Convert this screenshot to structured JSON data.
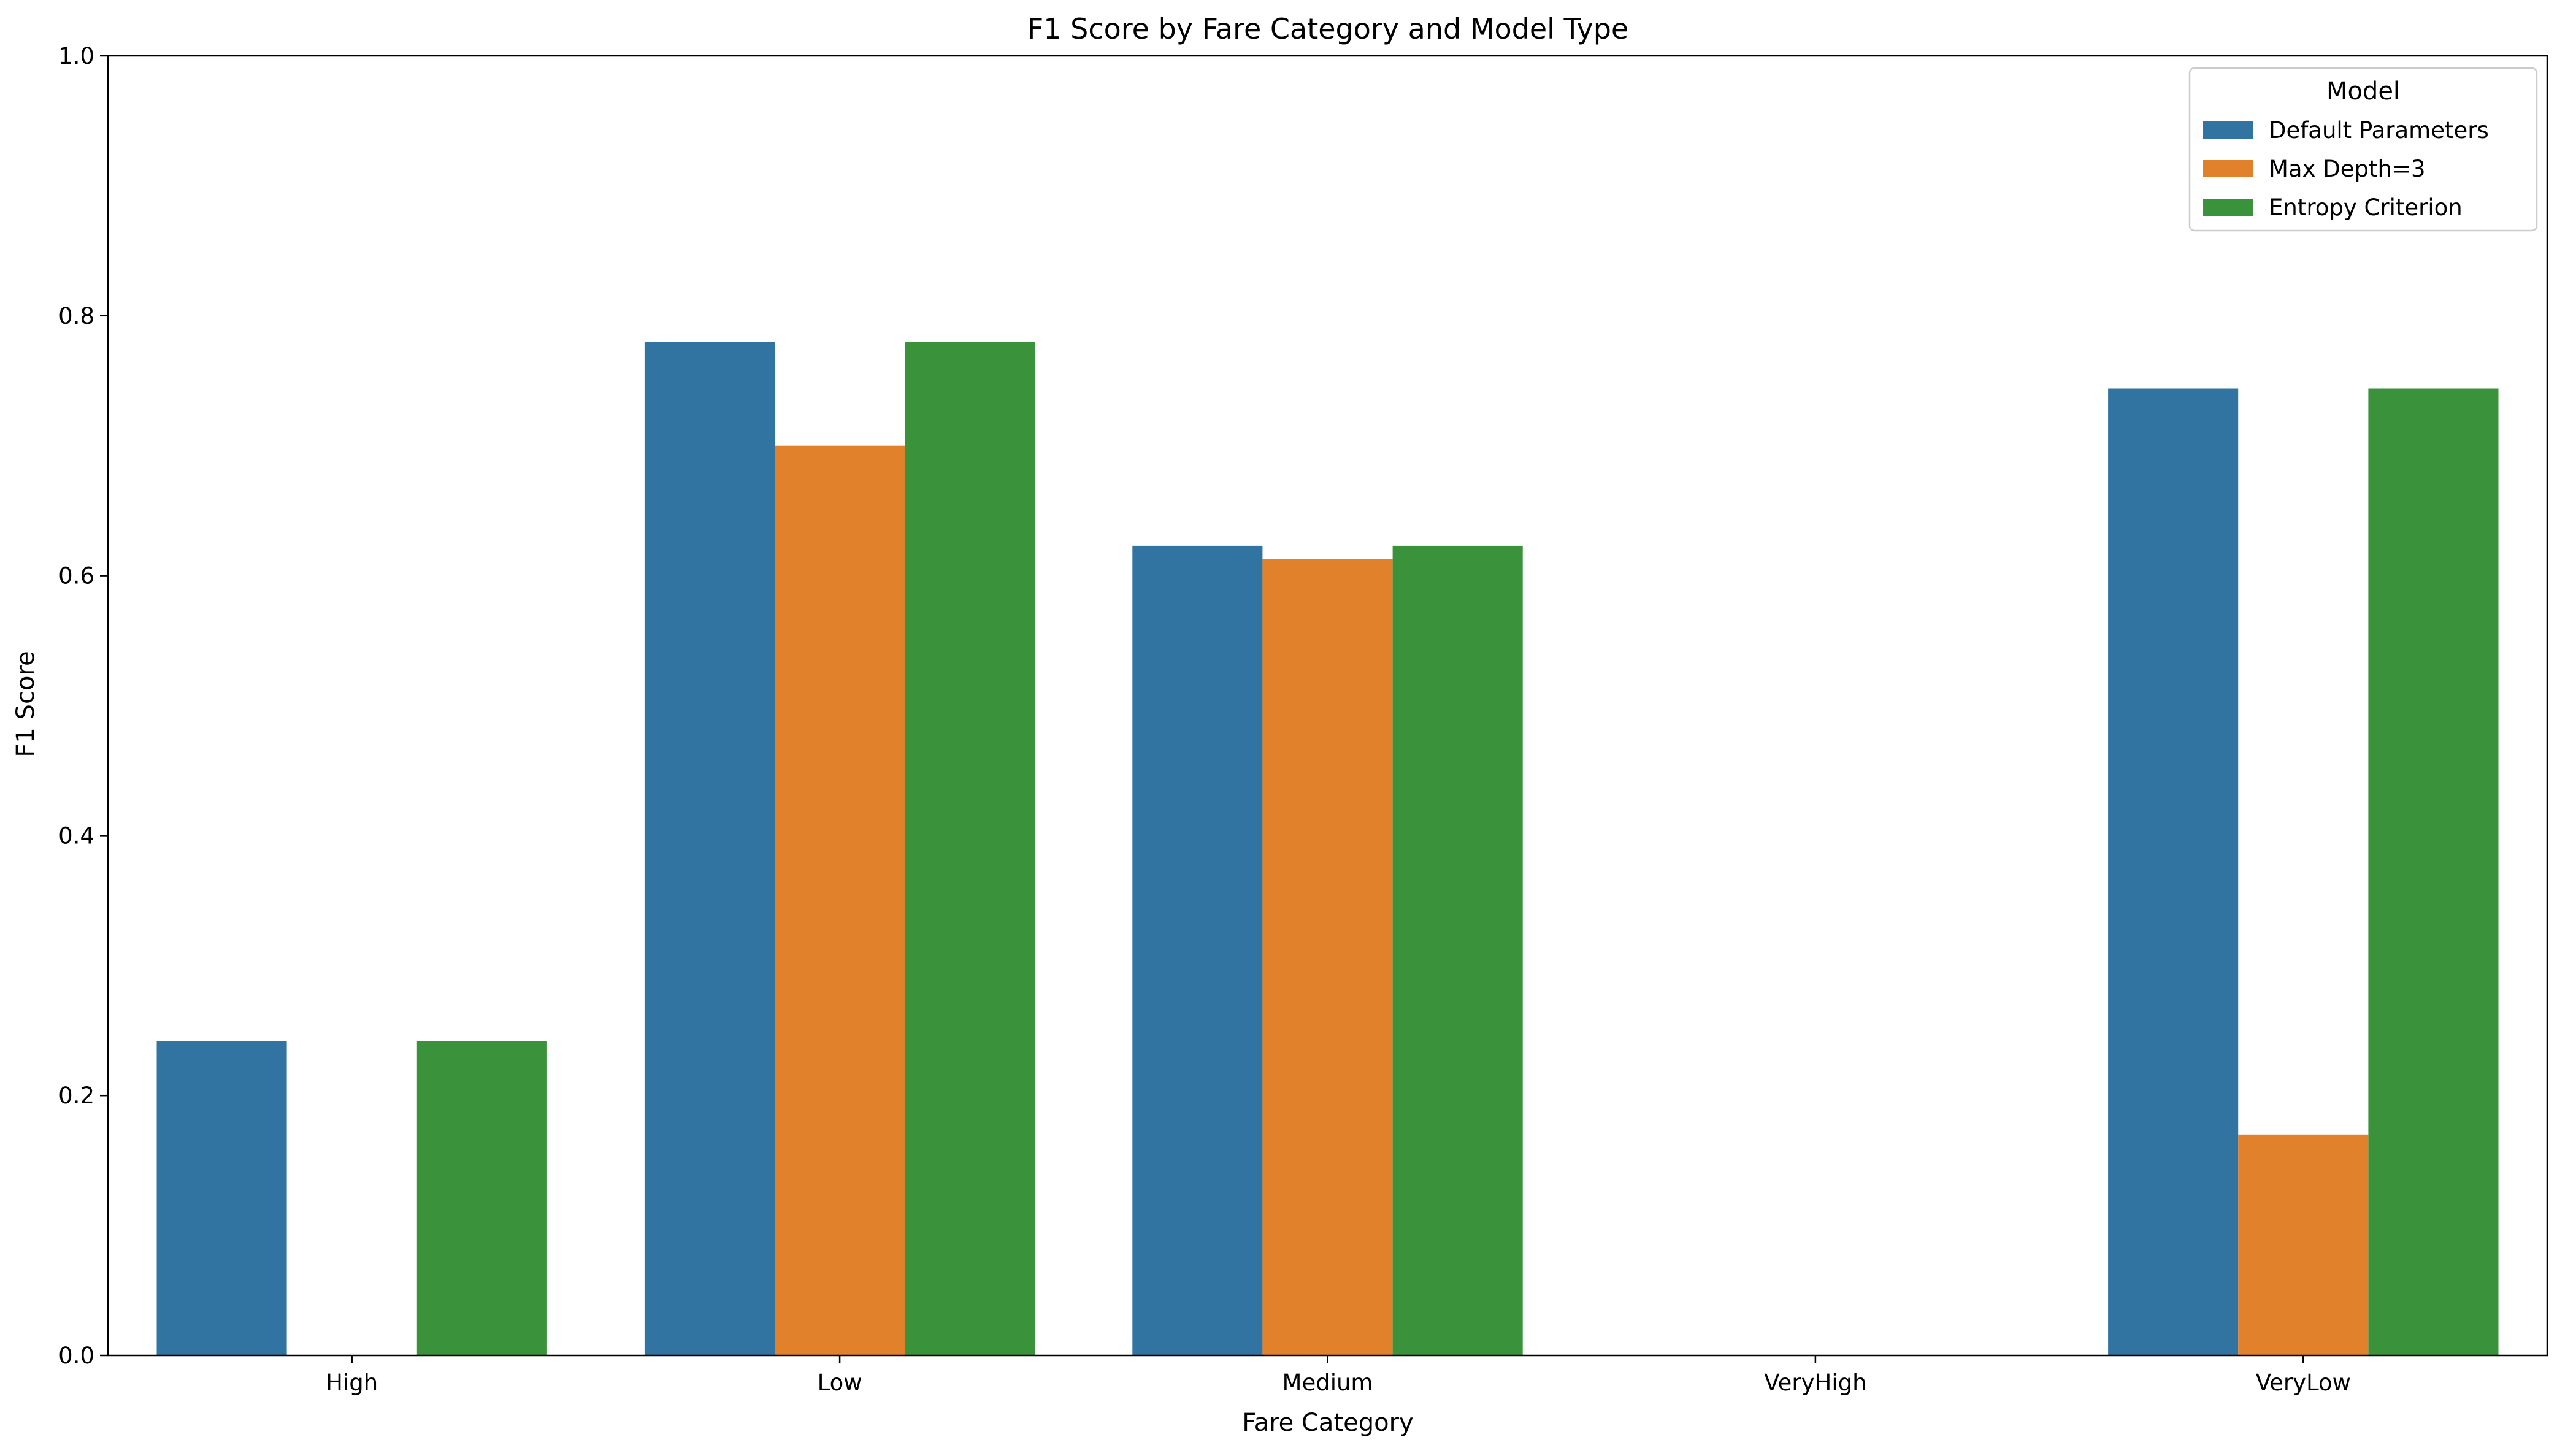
{
  "chart_data": {
    "type": "bar",
    "title": "F1 Score by Fare Category and Model Type",
    "xlabel": "Fare Category",
    "ylabel": "F1 Score",
    "categories": [
      "High",
      "Low",
      "Medium",
      "VeryHigh",
      "VeryLow"
    ],
    "ylim": [
      0,
      1.0
    ],
    "yticks": [
      "0.0",
      "0.2",
      "0.4",
      "0.6",
      "0.8",
      "1.0"
    ],
    "legend": {
      "title": "Model",
      "position": "top-right"
    },
    "series": [
      {
        "name": "Default Parameters",
        "color": "#3274a1",
        "values": [
          0.242,
          0.78,
          0.623,
          0.0,
          0.744
        ]
      },
      {
        "name": "Max Depth=3",
        "color": "#e1812c",
        "values": [
          0.0,
          0.7,
          0.613,
          0.0,
          0.17
        ]
      },
      {
        "name": "Entropy Criterion",
        "color": "#3a923a",
        "values": [
          0.242,
          0.78,
          0.623,
          0.0,
          0.744
        ]
      }
    ],
    "grid": false
  }
}
